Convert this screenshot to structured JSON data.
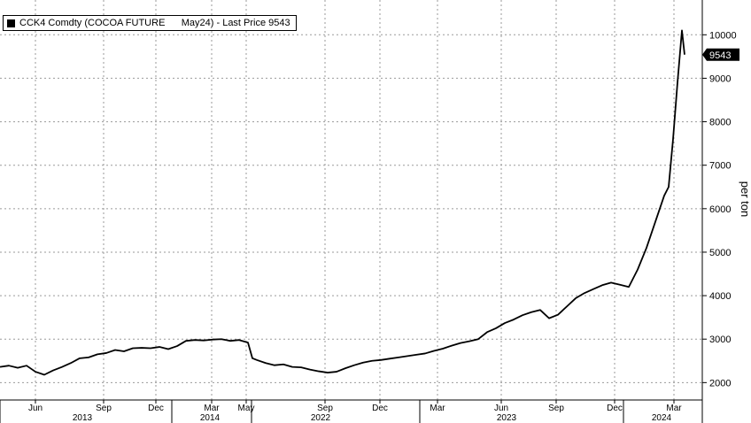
{
  "chart_data": {
    "type": "line",
    "legend_label": "CCK4 Comdty (COCOA FUTURE      May24) - Last Price 9543",
    "last_price_label": "9543",
    "ylabel": "per ton",
    "ylim": [
      1600,
      10800
    ],
    "yticks": [
      2000,
      3000,
      4000,
      5000,
      6000,
      7000,
      8000,
      9000,
      10000
    ],
    "ytick_labels": [
      "2000",
      "3000",
      "4000",
      "5000",
      "6000",
      "7000",
      "8000",
      "9000",
      "10000"
    ],
    "grid": true,
    "legend_position": "top-left",
    "series_color": "#000000",
    "x_month_labels": [
      "Jun",
      "Sep",
      "Dec",
      "Mar",
      "May",
      "Sep",
      "Dec",
      "Mar",
      "Jun",
      "Sep",
      "Dec",
      "Mar"
    ],
    "x_year_labels": [
      "2013",
      "2014",
      "2022",
      "2023",
      "2024"
    ],
    "series": [
      {
        "x": [
          0,
          10,
          20,
          30,
          40,
          50,
          60,
          70,
          80,
          90,
          100,
          110,
          120,
          130,
          140,
          150,
          160,
          170,
          180,
          190,
          200,
          210,
          220,
          230,
          240,
          250,
          260,
          270,
          280,
          285,
          290,
          300,
          310,
          320,
          330,
          340,
          350,
          360,
          370,
          380,
          390,
          400,
          410,
          420,
          430,
          440,
          450,
          460,
          470,
          480,
          490,
          500,
          510,
          520,
          530,
          540,
          550,
          560,
          570,
          580,
          590,
          600,
          610,
          620,
          630,
          640,
          650,
          660,
          670,
          680,
          690,
          700,
          710,
          720,
          730,
          740,
          750,
          755,
          760,
          765,
          770,
          773
        ],
        "values": [
          2360,
          2390,
          2340,
          2390,
          2250,
          2180,
          2280,
          2360,
          2450,
          2560,
          2580,
          2650,
          2680,
          2750,
          2720,
          2790,
          2800,
          2790,
          2820,
          2770,
          2840,
          2960,
          2980,
          2970,
          2990,
          3000,
          2960,
          2980,
          2920,
          2560,
          2520,
          2450,
          2400,
          2420,
          2360,
          2350,
          2300,
          2260,
          2230,
          2250,
          2330,
          2400,
          2460,
          2500,
          2520,
          2550,
          2580,
          2610,
          2640,
          2670,
          2730,
          2780,
          2850,
          2910,
          2950,
          3000,
          3160,
          3250,
          3370,
          3450,
          3550,
          3620,
          3670,
          3480,
          3560,
          3750,
          3940,
          4060,
          4150,
          4240,
          4300,
          4250,
          4200,
          4600,
          5100,
          5700,
          6300,
          6500,
          7600,
          8900,
          10100,
          9543
        ]
      }
    ]
  }
}
